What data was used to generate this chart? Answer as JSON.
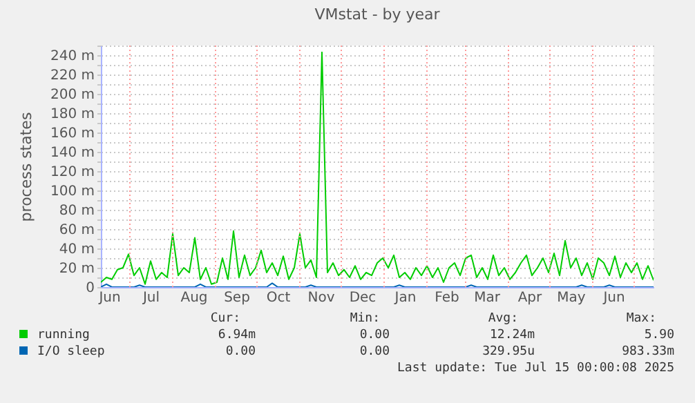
{
  "chart_data": {
    "type": "line",
    "title": "VMstat - by year",
    "ylabel": "process states",
    "x": [
      "2024-06-10",
      "2024-06-14",
      "2024-06-18",
      "2024-06-22",
      "2024-06-26",
      "2024-06-30",
      "2024-07-04",
      "2024-07-08",
      "2024-07-12",
      "2024-07-16",
      "2024-07-20",
      "2024-07-24",
      "2024-07-28",
      "2024-08-01",
      "2024-08-05",
      "2024-08-09",
      "2024-08-13",
      "2024-08-17",
      "2024-08-21",
      "2024-08-25",
      "2024-08-29",
      "2024-09-02",
      "2024-09-06",
      "2024-09-10",
      "2024-09-14",
      "2024-09-18",
      "2024-09-22",
      "2024-09-26",
      "2024-09-30",
      "2024-10-04",
      "2024-10-08",
      "2024-10-12",
      "2024-10-16",
      "2024-10-20",
      "2024-10-24",
      "2024-10-28",
      "2024-11-01",
      "2024-11-05",
      "2024-11-09",
      "2024-11-13",
      "2024-11-17",
      "2024-11-21",
      "2024-11-25",
      "2024-11-29",
      "2024-12-03",
      "2024-12-07",
      "2024-12-11",
      "2024-12-15",
      "2024-12-19",
      "2024-12-23",
      "2024-12-27",
      "2024-12-31",
      "2025-01-04",
      "2025-01-08",
      "2025-01-12",
      "2025-01-16",
      "2025-01-20",
      "2025-01-24",
      "2025-01-28",
      "2025-02-01",
      "2025-02-05",
      "2025-02-09",
      "2025-02-13",
      "2025-02-17",
      "2025-02-21",
      "2025-02-25",
      "2025-03-01",
      "2025-03-05",
      "2025-03-09",
      "2025-03-13",
      "2025-03-17",
      "2025-03-21",
      "2025-03-25",
      "2025-03-29",
      "2025-04-02",
      "2025-04-06",
      "2025-04-10",
      "2025-04-14",
      "2025-04-18",
      "2025-04-22",
      "2025-04-26",
      "2025-04-30",
      "2025-05-04",
      "2025-05-08",
      "2025-05-12",
      "2025-05-16",
      "2025-05-20",
      "2025-05-24",
      "2025-05-28",
      "2025-06-01",
      "2025-06-05",
      "2025-06-09",
      "2025-06-13",
      "2025-06-17",
      "2025-06-21",
      "2025-06-25",
      "2025-06-29",
      "2025-07-03",
      "2025-07-07",
      "2025-07-11",
      "2025-07-15"
    ],
    "series": [
      {
        "name": "running",
        "color": "#00cc00",
        "values": [
          5,
          10,
          8,
          18,
          20,
          34,
          12,
          20,
          3,
          27,
          8,
          15,
          10,
          55,
          12,
          20,
          15,
          51,
          8,
          20,
          3,
          5,
          30,
          8,
          58,
          10,
          33,
          12,
          20,
          38,
          15,
          25,
          12,
          32,
          8,
          20,
          55,
          20,
          28,
          10,
          243,
          15,
          25,
          12,
          18,
          10,
          22,
          8,
          15,
          12,
          25,
          30,
          20,
          33,
          10,
          15,
          8,
          20,
          12,
          22,
          10,
          20,
          5,
          20,
          25,
          12,
          30,
          33,
          10,
          20,
          8,
          33,
          12,
          20,
          8,
          15,
          25,
          33,
          12,
          20,
          30,
          15,
          35,
          12,
          48,
          20,
          30,
          12,
          25,
          8,
          30,
          25,
          12,
          32,
          10,
          25,
          15,
          25,
          8,
          22,
          7
        ]
      },
      {
        "name": "I/O sleep",
        "color": "#0066b3",
        "values": [
          0,
          3,
          0,
          0,
          0,
          0,
          0,
          2,
          0,
          0,
          0,
          0,
          0,
          0,
          0,
          0,
          0,
          0,
          3,
          0,
          0,
          0,
          0,
          0,
          0,
          0,
          0,
          0,
          0,
          0,
          0,
          4,
          0,
          0,
          0,
          0,
          0,
          0,
          2,
          0,
          0,
          0,
          0,
          0,
          0,
          0,
          0,
          0,
          0,
          0,
          0,
          0,
          0,
          0,
          2,
          0,
          0,
          0,
          0,
          0,
          0,
          0,
          0,
          0,
          0,
          0,
          0,
          2,
          0,
          0,
          0,
          0,
          0,
          0,
          0,
          0,
          0,
          0,
          0,
          0,
          0,
          0,
          0,
          0,
          0,
          0,
          0,
          2,
          0,
          0,
          0,
          0,
          2,
          0,
          0,
          0,
          0,
          0,
          0,
          0,
          0
        ]
      }
    ],
    "xlim": [
      "2024-06-10",
      "2025-07-15"
    ],
    "xticks": [
      {
        "value": "2024-06-16",
        "label": "Jun"
      },
      {
        "value": "2024-07-01",
        "label": null
      },
      {
        "value": "2024-07-16",
        "label": "Jul"
      },
      {
        "value": "2024-08-01",
        "label": null
      },
      {
        "value": "2024-08-16",
        "label": "Aug"
      },
      {
        "value": "2024-09-01",
        "label": null
      },
      {
        "value": "2024-09-16",
        "label": "Sep"
      },
      {
        "value": "2024-10-01",
        "label": null
      },
      {
        "value": "2024-10-16",
        "label": "Oct"
      },
      {
        "value": "2024-11-01",
        "label": null
      },
      {
        "value": "2024-11-16",
        "label": "Nov"
      },
      {
        "value": "2024-12-01",
        "label": null
      },
      {
        "value": "2024-12-16",
        "label": "Dec"
      },
      {
        "value": "2025-01-01",
        "label": null
      },
      {
        "value": "2025-01-16",
        "label": "Jan"
      },
      {
        "value": "2025-02-01",
        "label": null
      },
      {
        "value": "2025-02-15",
        "label": "Feb"
      },
      {
        "value": "2025-03-01",
        "label": null
      },
      {
        "value": "2025-03-16",
        "label": "Mar"
      },
      {
        "value": "2025-04-01",
        "label": null
      },
      {
        "value": "2025-04-16",
        "label": "Apr"
      },
      {
        "value": "2025-05-01",
        "label": null
      },
      {
        "value": "2025-05-16",
        "label": "May"
      },
      {
        "value": "2025-06-01",
        "label": null
      },
      {
        "value": "2025-06-16",
        "label": "Jun"
      },
      {
        "value": "2025-07-01",
        "label": null
      }
    ],
    "ylim": [
      0,
      250
    ],
    "yticks": [
      0,
      {
        "value": 10,
        "label": null
      },
      {
        "value": 20,
        "label": "20 m"
      },
      {
        "value": 30,
        "label": null
      },
      {
        "value": 40,
        "label": "40 m"
      },
      {
        "value": 50,
        "label": null
      },
      {
        "value": 60,
        "label": "60 m"
      },
      {
        "value": 70,
        "label": null
      },
      {
        "value": 80,
        "label": "80 m"
      },
      {
        "value": 90,
        "label": null
      },
      {
        "value": 100,
        "label": "100 m"
      },
      {
        "value": 110,
        "label": null
      },
      {
        "value": 120,
        "label": "120 m"
      },
      {
        "value": 130,
        "label": null
      },
      {
        "value": 140,
        "label": "140 m"
      },
      {
        "value": 150,
        "label": null
      },
      {
        "value": 160,
        "label": "160 m"
      },
      {
        "value": 170,
        "label": null
      },
      {
        "value": 180,
        "label": "180 m"
      },
      {
        "value": 190,
        "label": null
      },
      {
        "value": 200,
        "label": "200 m"
      },
      {
        "value": 210,
        "label": null
      },
      {
        "value": 220,
        "label": "220 m"
      },
      {
        "value": 230,
        "label": null
      },
      {
        "value": 240,
        "label": "240 m"
      },
      {
        "value": 250,
        "label": null
      }
    ],
    "grid": true,
    "legend": "bottom",
    "marker": "none",
    "annotations": [
      "Cur:",
      "Min:",
      "Avg:",
      "Max:",
      "6.94m",
      "0.00",
      "12.24m",
      "5.90",
      "0.00",
      "0.00",
      "329.95u",
      "983.33m",
      "Last update: Tue Jul 15 00:00:08 2025"
    ]
  }
}
